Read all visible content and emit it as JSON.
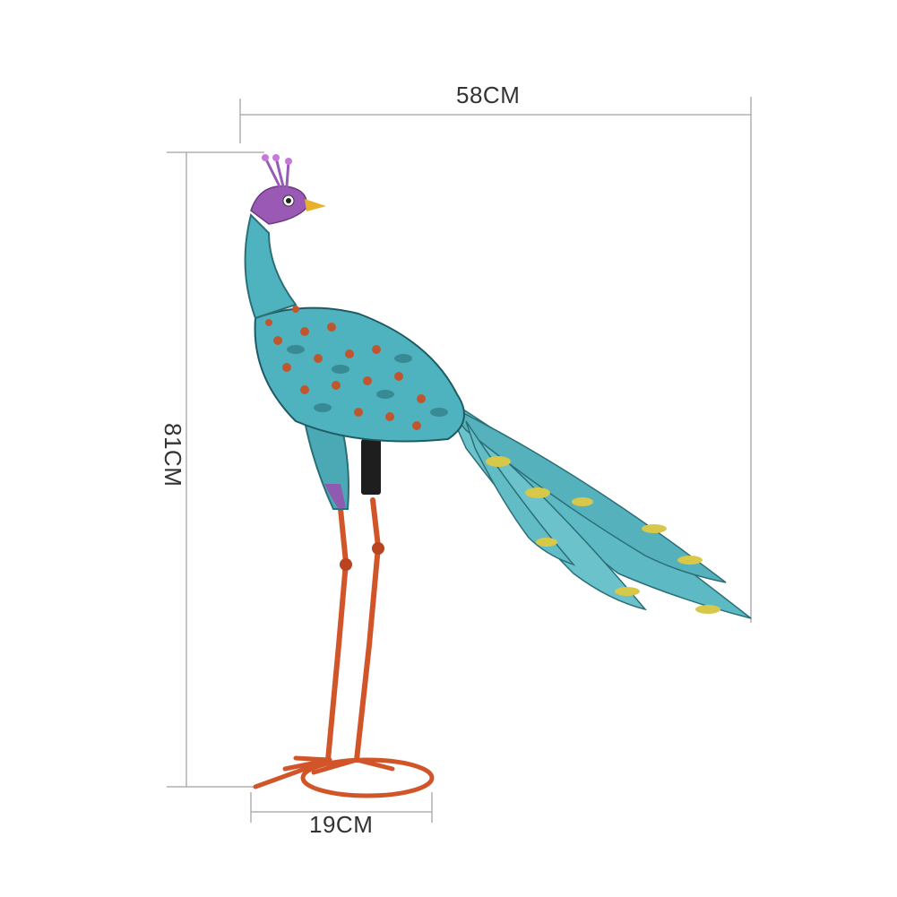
{
  "dimensions": {
    "width_label": "58CM",
    "height_label": "81CM",
    "base_label": "19CM"
  },
  "colors": {
    "background": "#ffffff",
    "dimension_line": "#b0b0b0",
    "body_teal": "#4fb3bf",
    "feather_dark": "#2a6f78",
    "feather_accent": "#c0562d",
    "legs_orange": "#d2552a",
    "head_purple": "#9b59b6",
    "beak_yellow": "#e8b12a",
    "tail_eye_yellow": "#d8c84a"
  },
  "subject": {
    "icon": "peacock-garden-statue"
  }
}
